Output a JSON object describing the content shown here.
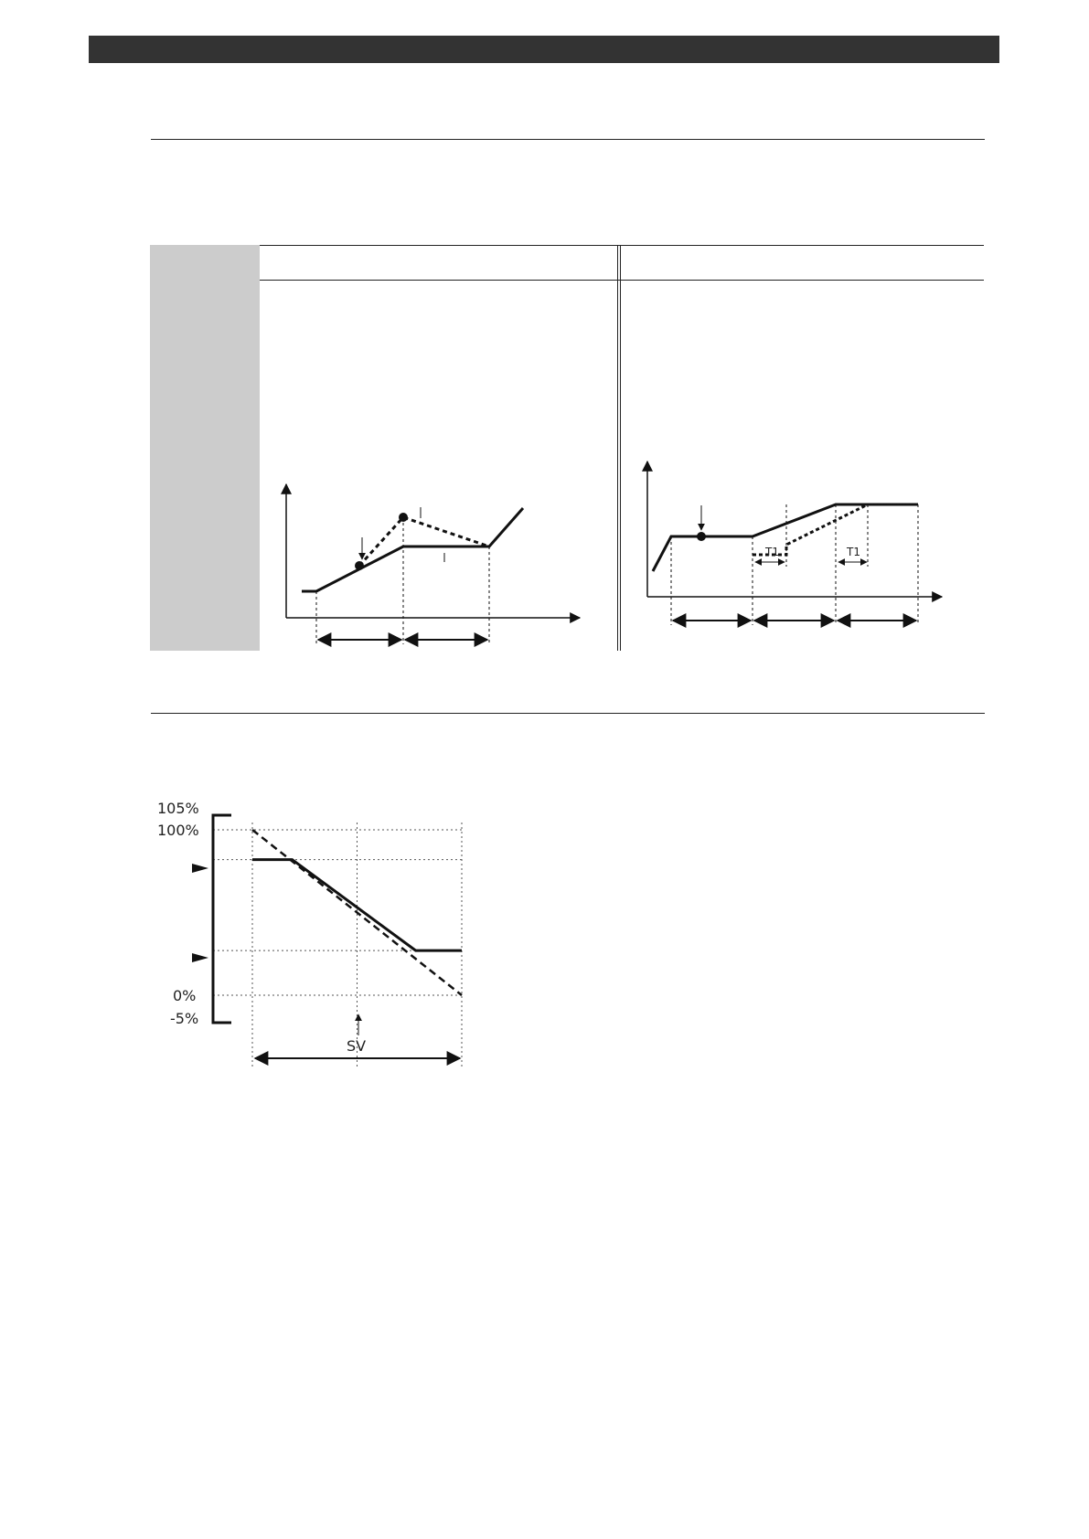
{
  "figure_left": {
    "markers": {}
  },
  "figure_right": {
    "interval_labels": [
      "T1",
      "T1"
    ]
  },
  "chart_data": {
    "type": "line",
    "title": "",
    "xlabel": "SV",
    "ylabel": "",
    "y_tick_labels": [
      "105%",
      "100%",
      "0%",
      "-5%"
    ],
    "ylim": [
      -5,
      105
    ],
    "series": [
      {
        "style": "solid",
        "points": [
          [
            0,
            82
          ],
          [
            19,
            82
          ],
          [
            78,
            27
          ],
          [
            100,
            27
          ]
        ]
      },
      {
        "style": "dashed",
        "points": [
          [
            0,
            100
          ],
          [
            100,
            0
          ]
        ]
      }
    ],
    "colors": {
      "line": "#111111",
      "grid": "#555555"
    }
  }
}
